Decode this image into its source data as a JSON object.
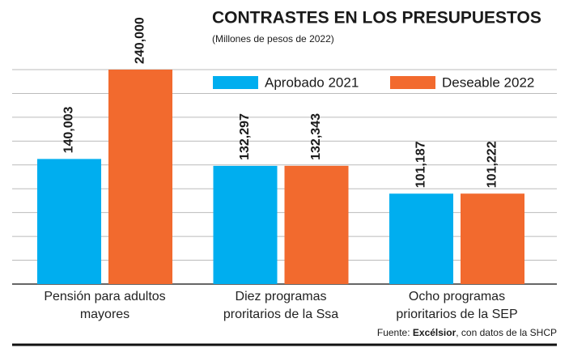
{
  "chart_data": {
    "type": "bar",
    "title": "CONTRASTES EN LOS PRESUPUESTOS",
    "subtitle": "(Millones de pesos de 2022)",
    "categories": [
      "Pensión para adultos mayores",
      "Diez programas proritarios de la Ssa",
      "Ocho programas prioritarios de la SEP"
    ],
    "series": [
      {
        "name": "Aprobado 2021",
        "color": "#00aeef",
        "values": [
          140003,
          132297,
          101187
        ],
        "value_labels": [
          "140,003",
          "132,297",
          "101,187"
        ]
      },
      {
        "name": "Deseable 2022",
        "color": "#f26a2e",
        "values": [
          240000,
          132343,
          101222
        ],
        "value_labels": [
          "240,000",
          "132,343",
          "101,222"
        ]
      }
    ],
    "ylim": [
      0,
      240000
    ],
    "yticks": [
      0,
      26667,
      53333,
      80000,
      106667,
      133333,
      160000,
      186667,
      213333,
      240000
    ],
    "grid": true,
    "legend": "top-right",
    "source": {
      "prefix": "Fuente: ",
      "bold": "Excélsior",
      "suffix": ", con datos de la SHCP"
    }
  }
}
